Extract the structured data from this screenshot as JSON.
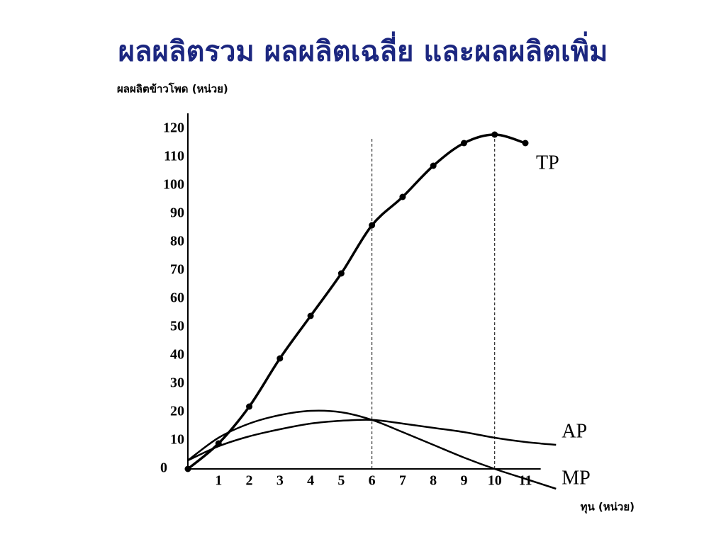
{
  "chart_data": {
    "type": "line",
    "title": "ผลผลิตรวม ผลผลิตเฉลี่ย และผลผลิตเพิ่ม",
    "y_label": "ผลผลิตข้าวโพด  (หน่วย)",
    "x_label": "ทุน  (หน่วย)",
    "x": [
      0,
      1,
      2,
      3,
      4,
      5,
      6,
      7,
      8,
      9,
      10,
      11,
      12
    ],
    "series": [
      {
        "name": "TP",
        "color": "#000000",
        "markers": true,
        "values": [
          0,
          9,
          22,
          39,
          54,
          69,
          86,
          96,
          107,
          115,
          118,
          115,
          null
        ]
      },
      {
        "name": "AP",
        "color": "#000000",
        "markers": false,
        "values": [
          3,
          8,
          11.5,
          14,
          16,
          17,
          17.3,
          16,
          14.5,
          13,
          11,
          9.5,
          8.5
        ]
      },
      {
        "name": "MP",
        "color": "#000000",
        "markers": false,
        "values": [
          3,
          11,
          16,
          19,
          20.5,
          20,
          17.3,
          13,
          8.5,
          4,
          0,
          -3.5,
          -7
        ]
      }
    ],
    "xlim": [
      0,
      11.5
    ],
    "ylim": [
      0,
      120
    ],
    "xticks": [
      1,
      2,
      3,
      4,
      5,
      6,
      7,
      8,
      9,
      10,
      11
    ],
    "yticks": [
      0,
      10,
      20,
      30,
      40,
      50,
      60,
      70,
      80,
      90,
      100,
      110,
      120
    ],
    "vlines": [
      6,
      10
    ]
  }
}
